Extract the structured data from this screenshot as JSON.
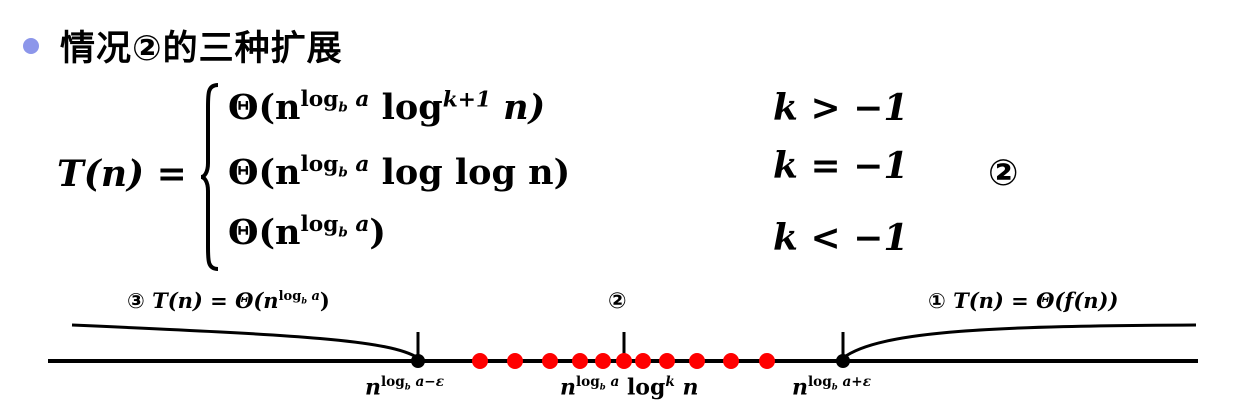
{
  "heading": "情况②的三种扩展",
  "lhs": "T(n) =",
  "cases": [
    {
      "pre": "Θ(n",
      "sup": "log",
      "subb": "b",
      "supa": " a",
      "post1": " log",
      "sup2": "k+1",
      "post2": " n)",
      "cond": "k > −1"
    },
    {
      "pre": "Θ(n",
      "sup": "log",
      "subb": "b",
      "supa": " a",
      "post1": " log log n)",
      "cond": "k = −1"
    },
    {
      "pre": "Θ(n",
      "sup": "log",
      "subb": "b",
      "supa": " a",
      "post1": ")",
      "cond": "k < −1"
    }
  ],
  "eq_tag": "②",
  "left_label": {
    "num": "③",
    "text": "T(n) = Θ(n",
    "sup": "log",
    "subb": "b",
    "supa": " a",
    "close": ")"
  },
  "mid_label": "②",
  "right_label": {
    "num": "①",
    "text": "T(n) = Θ(f(n))"
  },
  "tick_left": {
    "base": "n",
    "sup": "log",
    "subb": "b",
    "supa": " a−ε"
  },
  "tick_mid": {
    "base": "n",
    "sup": "log",
    "subb": "b",
    "supa": " a",
    "post": " log",
    "sup2": "k",
    "post2": " n"
  },
  "tick_right": {
    "base": "n",
    "sup": "log",
    "subb": "b",
    "supa": " a+ε"
  },
  "colors": {
    "bullet": "#8c96ea",
    "dots": "#ff0000",
    "line": "#000000"
  }
}
